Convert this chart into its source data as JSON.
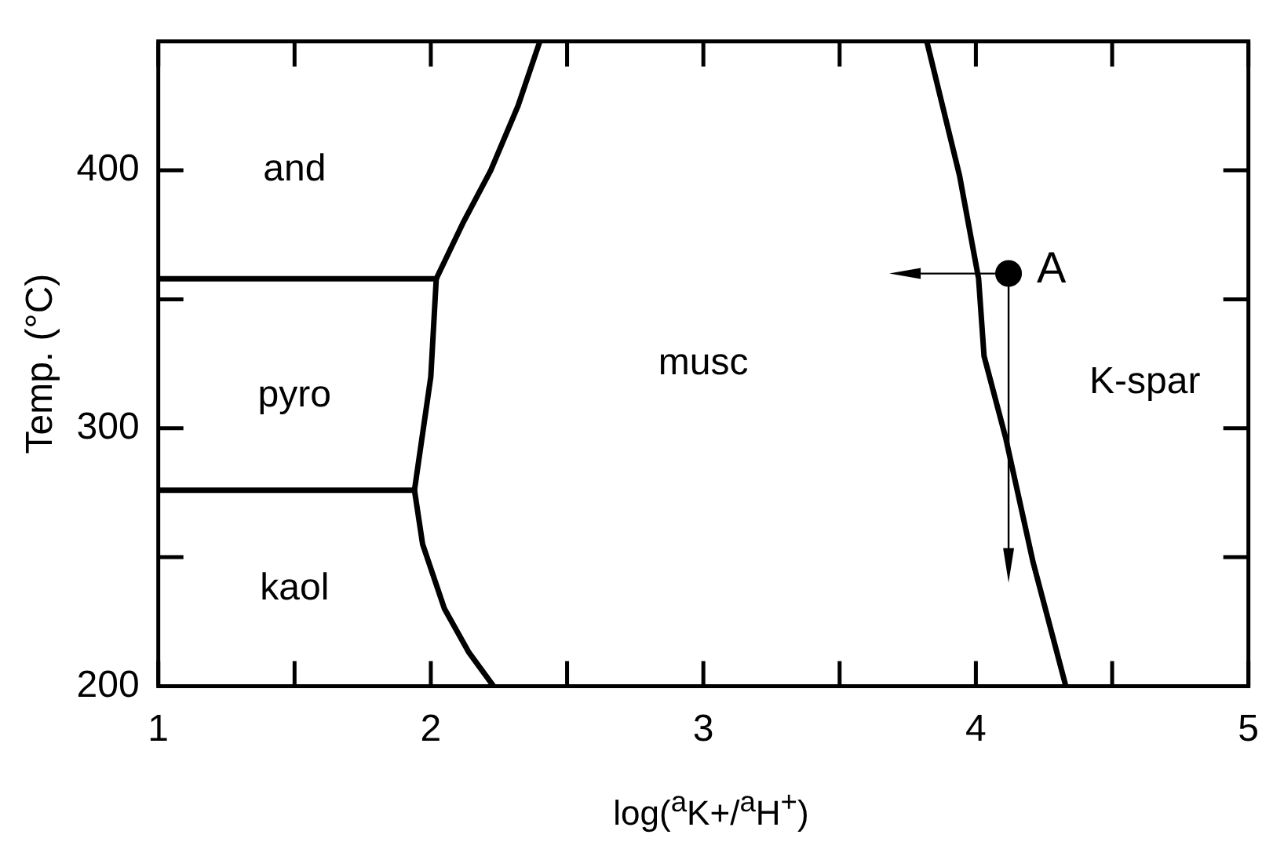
{
  "chart_data": {
    "type": "line",
    "xlabel": "log($^{a}$K+/$^{a}$H$^{+}$)",
    "ylabel": "Temp. (°C)",
    "xlim": [
      1,
      5
    ],
    "ylim": [
      200,
      450
    ],
    "xticks": [
      1,
      {
        "value": 1.5,
        "label": null
      },
      2,
      {
        "value": 2.5,
        "label": null
      },
      3,
      {
        "value": 3.5,
        "label": null
      },
      4,
      {
        "value": 4.5,
        "label": null
      },
      5
    ],
    "yticks": [
      200,
      {
        "value": 250,
        "label": null
      },
      300,
      {
        "value": 350,
        "label": null
      },
      400
    ],
    "legend": false,
    "marker": "none",
    "line_style": "solid",
    "series": [
      {
        "color": "#000000",
        "x": [
          1,
          2.02
        ],
        "values": [
          358,
          358
        ]
      },
      {
        "color": "#000000",
        "x": [
          1,
          1.94
        ],
        "values": [
          276,
          276
        ]
      },
      {
        "color": "#000000",
        "x": [
          2.4,
          2.32,
          2.22,
          2.12,
          2.02,
          2.0,
          1.94,
          1.97,
          2.05,
          2.14,
          2.23
        ],
        "values": [
          450,
          425,
          400,
          380,
          358,
          320,
          276,
          255,
          230,
          213,
          200
        ]
      },
      {
        "color": "#000000",
        "x": [
          3.82,
          3.94,
          4.01,
          4.03,
          4.11,
          4.21,
          4.33
        ],
        "values": [
          450,
          398,
          358,
          328,
          296,
          248,
          200
        ]
      },
      {
        "type": "scatter",
        "color": "#000000",
        "marker": "circle",
        "x": [
          4.12
        ],
        "values": [
          360
        ]
      }
    ],
    "annotations": [
      "and",
      "pyro",
      "kaol",
      "musc",
      "K-spar",
      {
        "text": "A",
        "x": 4.12,
        "y": 360
      }
    ]
  }
}
